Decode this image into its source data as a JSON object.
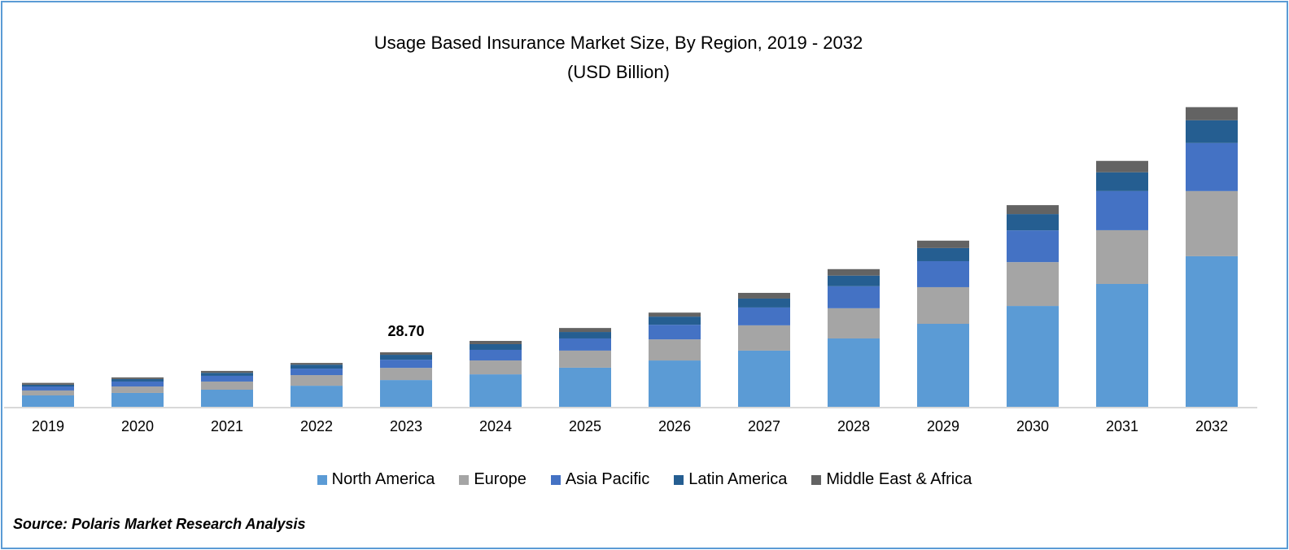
{
  "chart_data": {
    "type": "bar",
    "stacked": true,
    "title": "Usage Based Insurance Market Size, By Region, 2019 - 2032",
    "subtitle": "(USD Billion)",
    "xlabel": "",
    "ylabel": "",
    "grid": false,
    "legend_position": "bottom",
    "categories": [
      "2019",
      "2020",
      "2021",
      "2022",
      "2023",
      "2024",
      "2025",
      "2026",
      "2027",
      "2028",
      "2029",
      "2030",
      "2031",
      "2032"
    ],
    "series": [
      {
        "name": "North America",
        "color": "#5B9BD5",
        "values": [
          6.0,
          7.3,
          9.0,
          11.1,
          14.1,
          17.1,
          20.6,
          24.4,
          29.6,
          36.0,
          43.7,
          53.1,
          64.7,
          79.3
        ]
      },
      {
        "name": "Europe",
        "color": "#A5A5A5",
        "values": [
          2.6,
          3.4,
          4.3,
          5.6,
          6.4,
          7.3,
          9.0,
          11.1,
          13.3,
          15.9,
          19.3,
          23.1,
          28.3,
          34.3
        ]
      },
      {
        "name": "Asia Pacific",
        "color": "#4472C4",
        "values": [
          2.1,
          2.6,
          3.0,
          3.4,
          4.3,
          5.6,
          6.4,
          7.7,
          9.4,
          11.6,
          13.7,
          16.7,
          20.6,
          25.3
        ]
      },
      {
        "name": "Latin America",
        "color": "#255E91",
        "values": [
          0.9,
          1.3,
          1.6,
          2.1,
          2.6,
          3.0,
          3.4,
          4.3,
          4.7,
          5.6,
          6.9,
          8.6,
          9.9,
          12.0
        ]
      },
      {
        "name": "Middle East & Africa",
        "color": "#636363",
        "values": [
          1.0,
          0.9,
          1.0,
          0.9,
          1.3,
          1.7,
          2.1,
          2.1,
          3.0,
          3.4,
          3.9,
          4.7,
          6.0,
          6.9
        ]
      }
    ],
    "annotations": [
      {
        "category": "2023",
        "text": "28.70"
      }
    ]
  },
  "source": "Source: Polaris Market Research Analysis"
}
